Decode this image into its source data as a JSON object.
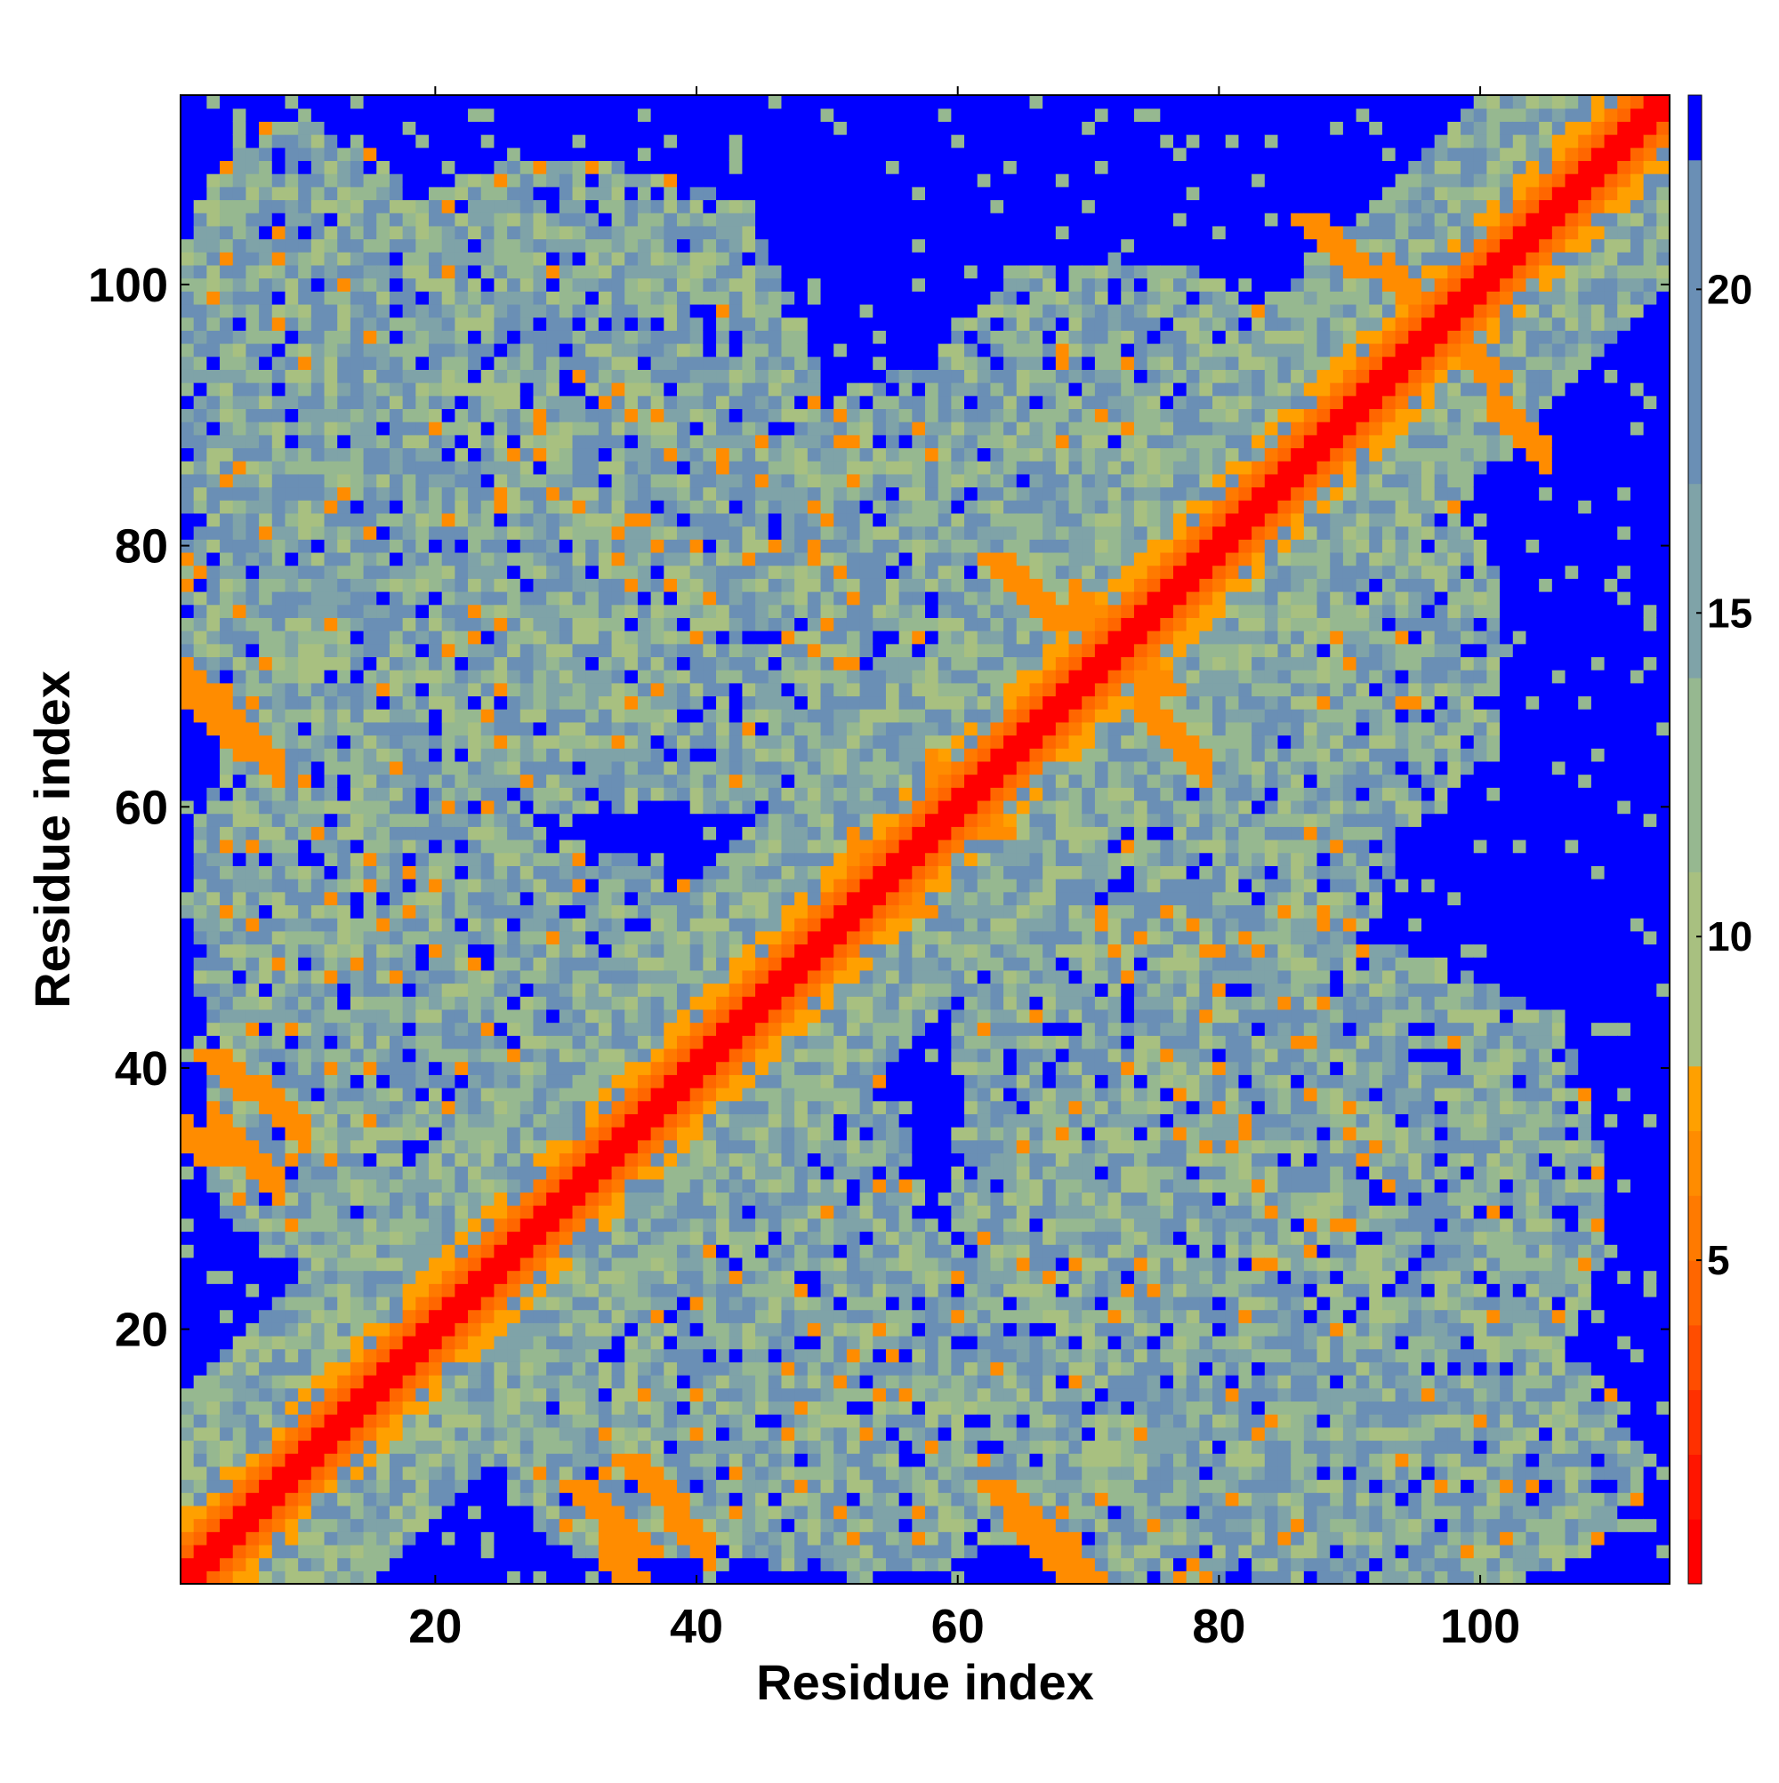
{
  "chart_data": {
    "type": "heatmap",
    "title": "",
    "xlabel": "Residue index",
    "ylabel": "Residue index",
    "n_residues": 114,
    "xlim": [
      0.5,
      114.5
    ],
    "ylim": [
      0.5,
      114.5
    ],
    "x_ticks": [
      20,
      40,
      60,
      80,
      100
    ],
    "y_ticks": [
      20,
      40,
      60,
      80,
      100
    ],
    "colorbar": {
      "ticks": [
        5,
        10,
        15,
        20
      ],
      "range": [
        0,
        23
      ],
      "levels": [
        {
          "from": 0,
          "to": 1,
          "color": "#ff0000"
        },
        {
          "from": 1,
          "to": 2,
          "color": "#ff1500"
        },
        {
          "from": 2,
          "to": 3,
          "color": "#ff3000"
        },
        {
          "from": 3,
          "to": 4,
          "color": "#ff4d00"
        },
        {
          "from": 4,
          "to": 5,
          "color": "#ff6600"
        },
        {
          "from": 5,
          "to": 6,
          "color": "#ff7a00"
        },
        {
          "from": 6,
          "to": 7,
          "color": "#ff8c00"
        },
        {
          "from": 7,
          "to": 8,
          "color": "#ffa000"
        },
        {
          "from": 8,
          "to": 11,
          "color": "#a8c080"
        },
        {
          "from": 11,
          "to": 14,
          "color": "#96b890"
        },
        {
          "from": 14,
          "to": 17,
          "color": "#7fa3a8"
        },
        {
          "from": 17,
          "to": 22,
          "color": "#6a8fb5"
        },
        {
          "from": 22,
          "to": 23,
          "color": "#0000ff"
        }
      ]
    },
    "description_values": "Symmetric residue-residue distance map; values near 0 on the diagonal (red), 4-8 in near-diagonal bands and contact clusters (orange), 8-22 in structured regions (green-blue), and above cutoff elsewhere (blue).",
    "diagonal_value": 0.5,
    "near_diagonal_values": [
      4.5,
      6.5
    ],
    "contact_clusters": [
      {
        "i": 1,
        "j": 70,
        "span": 8,
        "value": 6
      },
      {
        "i": 3,
        "j": 36,
        "span": 6,
        "value": 6
      },
      {
        "i": 7,
        "j": 38,
        "span": 4,
        "value": 6
      },
      {
        "i": 33,
        "j": 3,
        "span": 6,
        "value": 6
      },
      {
        "i": 38,
        "j": 6,
        "span": 4,
        "value": 6
      },
      {
        "i": 64,
        "j": 6,
        "span": 6,
        "value": 6
      },
      {
        "i": 69,
        "j": 76,
        "span": 5,
        "value": 6
      },
      {
        "i": 74,
        "j": 68,
        "span": 6,
        "value": 6
      },
      {
        "i": 93,
        "j": 101,
        "span": 6,
        "value": 6
      },
      {
        "i": 101,
        "j": 91,
        "span": 5,
        "value": 6
      },
      {
        "i": 58,
        "j": 63,
        "span": 4,
        "value": 6
      },
      {
        "i": 52,
        "j": 57,
        "span": 4,
        "value": 6
      }
    ],
    "structured_regions": [
      {
        "cx": 10,
        "cy": 88,
        "rx": 12,
        "ry": 25
      },
      {
        "cx": 30,
        "cy": 88,
        "rx": 20,
        "ry": 22
      },
      {
        "cx": 38,
        "cy": 100,
        "rx": 8,
        "ry": 8
      },
      {
        "cx": 45,
        "cy": 73,
        "rx": 14,
        "ry": 14
      },
      {
        "cx": 60,
        "cy": 80,
        "rx": 16,
        "ry": 14
      },
      {
        "cx": 72,
        "cy": 92,
        "rx": 14,
        "ry": 10
      },
      {
        "cx": 88,
        "cy": 30,
        "rx": 22,
        "ry": 20
      },
      {
        "cx": 73,
        "cy": 30,
        "rx": 14,
        "ry": 16
      },
      {
        "cx": 52,
        "cy": 15,
        "rx": 18,
        "ry": 14
      },
      {
        "cx": 88,
        "cy": 5,
        "rx": 20,
        "ry": 6
      },
      {
        "cx": 72,
        "cy": 45,
        "rx": 12,
        "ry": 12
      },
      {
        "cx": 30,
        "cy": 45,
        "rx": 14,
        "ry": 12
      },
      {
        "cx": 12,
        "cy": 55,
        "rx": 10,
        "ry": 16
      },
      {
        "cx": 35,
        "cy": 10,
        "rx": 10,
        "ry": 8
      }
    ]
  }
}
